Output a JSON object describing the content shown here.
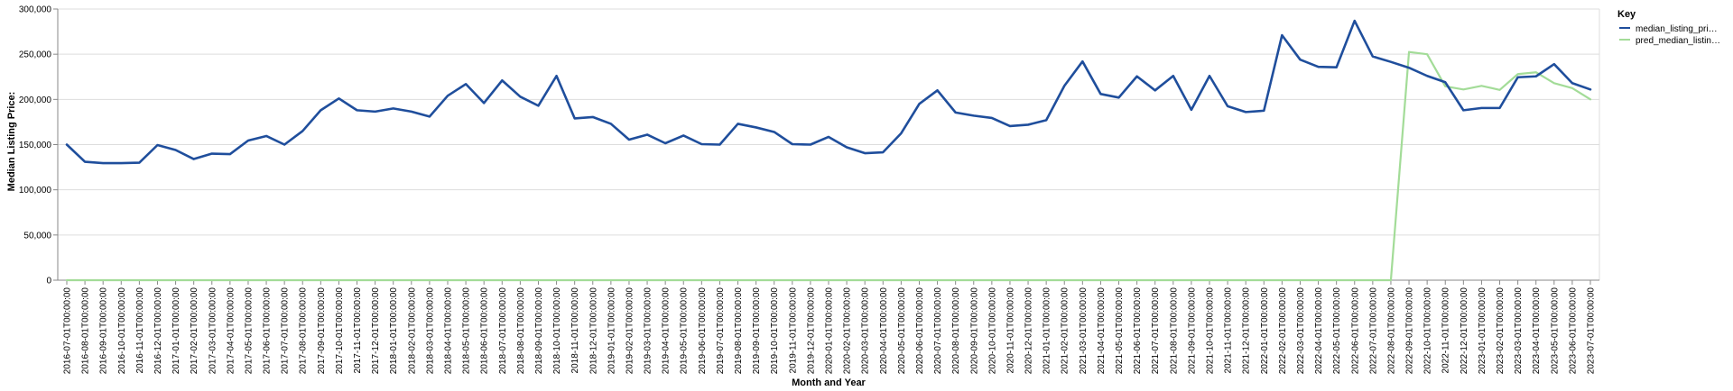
{
  "colors": {
    "median": "#1f4e9c",
    "pred": "#a3dc98",
    "grid": "#dddddd",
    "axis": "#888888"
  },
  "chart_data": {
    "type": "line",
    "xlabel": "Month and Year",
    "ylabel": "Median Listing Price:",
    "ylim": [
      0,
      300000
    ],
    "yticks": [
      "0",
      "50,000",
      "100,000",
      "150,000",
      "200,000",
      "250,000",
      "300,000"
    ],
    "ytick_values": [
      0,
      50000,
      100000,
      150000,
      200000,
      250000,
      300000
    ],
    "grid": true,
    "legend": {
      "title": "Key",
      "placement": "top-right"
    },
    "x": [
      "2016-07-01T00:00:00",
      "2016-08-01T00:00:00",
      "2016-09-01T00:00:00",
      "2016-10-01T00:00:00",
      "2016-11-01T00:00:00",
      "2016-12-01T00:00:00",
      "2017-01-01T00:00:00",
      "2017-02-01T00:00:00",
      "2017-03-01T00:00:00",
      "2017-04-01T00:00:00",
      "2017-05-01T00:00:00",
      "2017-06-01T00:00:00",
      "2017-07-01T00:00:00",
      "2017-08-01T00:00:00",
      "2017-09-01T00:00:00",
      "2017-10-01T00:00:00",
      "2017-11-01T00:00:00",
      "2017-12-01T00:00:00",
      "2018-01-01T00:00:00",
      "2018-02-01T00:00:00",
      "2018-03-01T00:00:00",
      "2018-04-01T00:00:00",
      "2018-05-01T00:00:00",
      "2018-06-01T00:00:00",
      "2018-07-01T00:00:00",
      "2018-08-01T00:00:00",
      "2018-09-01T00:00:00",
      "2018-10-01T00:00:00",
      "2018-11-01T00:00:00",
      "2018-12-01T00:00:00",
      "2019-01-01T00:00:00",
      "2019-02-01T00:00:00",
      "2019-03-01T00:00:00",
      "2019-04-01T00:00:00",
      "2019-05-01T00:00:00",
      "2019-06-01T00:00:00",
      "2019-07-01T00:00:00",
      "2019-08-01T00:00:00",
      "2019-09-01T00:00:00",
      "2019-10-01T00:00:00",
      "2019-11-01T00:00:00",
      "2019-12-01T00:00:00",
      "2020-01-01T00:00:00",
      "2020-02-01T00:00:00",
      "2020-03-01T00:00:00",
      "2020-04-01T00:00:00",
      "2020-05-01T00:00:00",
      "2020-06-01T00:00:00",
      "2020-07-01T00:00:00",
      "2020-08-01T00:00:00",
      "2020-09-01T00:00:00",
      "2020-10-01T00:00:00",
      "2020-11-01T00:00:00",
      "2020-12-01T00:00:00",
      "2021-01-01T00:00:00",
      "2021-02-01T00:00:00",
      "2021-03-01T00:00:00",
      "2021-04-01T00:00:00",
      "2021-05-01T00:00:00",
      "2021-06-01T00:00:00",
      "2021-07-01T00:00:00",
      "2021-08-01T00:00:00",
      "2021-09-01T00:00:00",
      "2021-10-01T00:00:00",
      "2021-11-01T00:00:00",
      "2021-12-01T00:00:00",
      "2022-01-01T00:00:00",
      "2022-02-01T00:00:00",
      "2022-03-01T00:00:00",
      "2022-04-01T00:00:00",
      "2022-05-01T00:00:00",
      "2022-06-01T00:00:00",
      "2022-07-01T00:00:00",
      "2022-08-01T00:00:00",
      "2022-09-01T00:00:00",
      "2022-10-01T00:00:00",
      "2022-11-01T00:00:00",
      "2022-12-01T00:00:00",
      "2023-01-01T00:00:00",
      "2023-02-01T00:00:00",
      "2023-03-01T00:00:00",
      "2023-04-01T00:00:00",
      "2023-05-01T00:00:00",
      "2023-06-01T00:00:00",
      "2023-07-01T00:00:00"
    ],
    "series": [
      {
        "name": "median_listing_pri…",
        "values": [
          150000,
          131000,
          129500,
          129500,
          130000,
          149500,
          144000,
          134000,
          140000,
          139500,
          154500,
          159500,
          150000,
          165000,
          188000,
          201000,
          188000,
          186500,
          190000,
          186500,
          181000,
          204000,
          217000,
          196000,
          221000,
          203000,
          193000,
          226000,
          179000,
          180500,
          173000,
          155500,
          161000,
          151500,
          160000,
          150500,
          150000,
          173000,
          169000,
          164000,
          150500,
          150000,
          158500,
          147000,
          140500,
          141500,
          162500,
          195000,
          210000,
          185500,
          182000,
          179500,
          170500,
          172000,
          177000,
          215000,
          242000,
          206000,
          202000,
          225500,
          210000,
          226000,
          188500,
          226000,
          192500,
          186000,
          187500,
          271000,
          244000,
          236000,
          235500,
          287000,
          247500,
          241500,
          235000,
          226000,
          219000,
          188000,
          190500,
          190500,
          224500,
          225500,
          239000,
          218000,
          211000
        ]
      },
      {
        "name": "pred_median_listin…",
        "values": [
          0,
          0,
          0,
          0,
          0,
          0,
          0,
          0,
          0,
          0,
          0,
          0,
          0,
          0,
          0,
          0,
          0,
          0,
          0,
          0,
          0,
          0,
          0,
          0,
          0,
          0,
          0,
          0,
          0,
          0,
          0,
          0,
          0,
          0,
          0,
          0,
          0,
          0,
          0,
          0,
          0,
          0,
          0,
          0,
          0,
          0,
          0,
          0,
          0,
          0,
          0,
          0,
          0,
          0,
          0,
          0,
          0,
          0,
          0,
          0,
          0,
          0,
          0,
          0,
          0,
          0,
          0,
          0,
          0,
          0,
          0,
          0,
          0,
          0,
          252500,
          250000,
          214500,
          211000,
          215000,
          210500,
          228000,
          230000,
          218000,
          212500,
          200000
        ]
      }
    ]
  }
}
